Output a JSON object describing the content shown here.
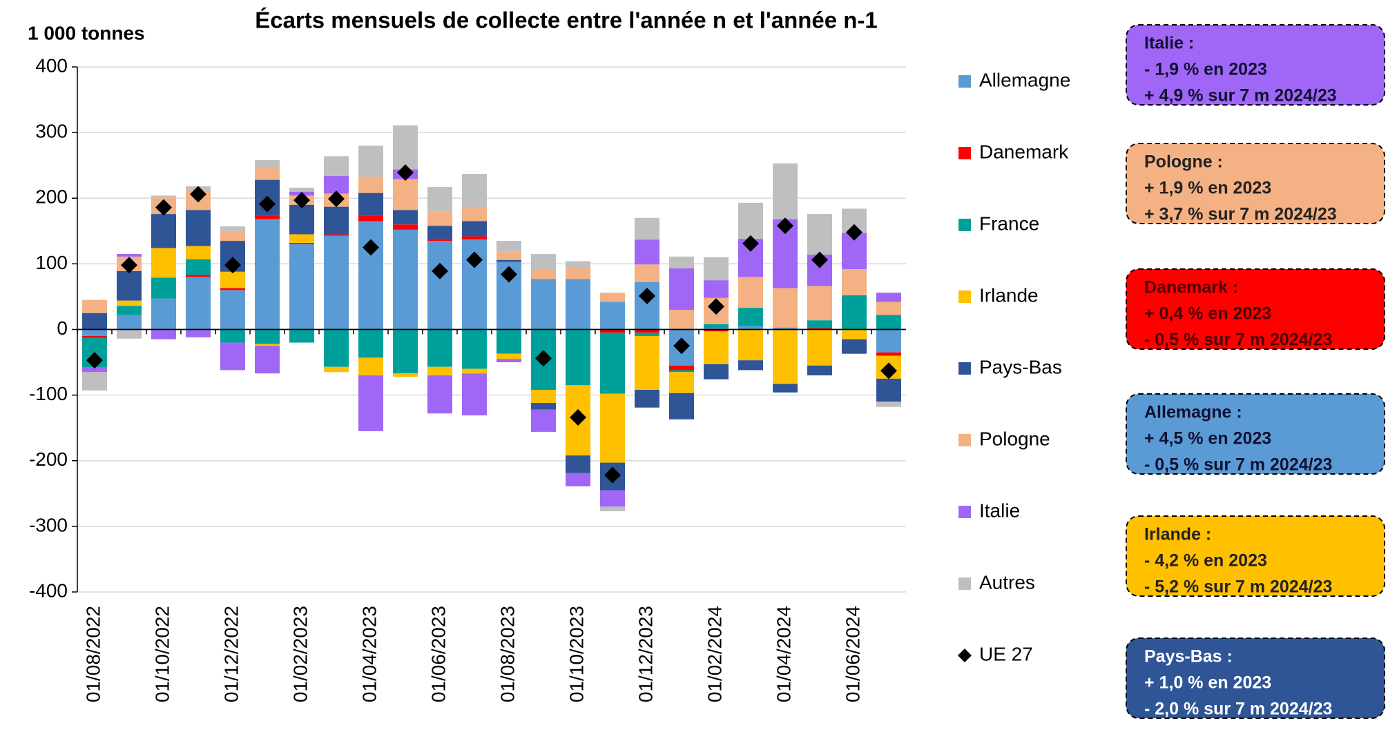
{
  "chart_data": {
    "type": "stacked_bar",
    "title": "Écarts mensuels de collecte entre l'année n et l'année n-1",
    "y_label": "1 000 tonnes",
    "categories": [
      "01/08/2022",
      null,
      "01/10/2022",
      null,
      "01/12/2022",
      null,
      "01/02/2023",
      null,
      "01/04/2023",
      null,
      "01/06/2023",
      null,
      "01/08/2023",
      null,
      "01/10/2023",
      null,
      "01/12/2023",
      null,
      "01/02/2024",
      null,
      "01/04/2024",
      null,
      "01/06/2024",
      null
    ],
    "ylim": [
      -400,
      400
    ],
    "yticks": [
      -400,
      -300,
      -200,
      -100,
      0,
      100,
      200,
      300,
      400
    ],
    "grid": true,
    "series": [
      {
        "name": "Allemagne",
        "color": "#5b9bd5",
        "values": [
          -10,
          22,
          47,
          80,
          60,
          168,
          130,
          143,
          165,
          152,
          135,
          137,
          103,
          77,
          77,
          42,
          72,
          -55,
          2,
          5,
          3,
          0,
          0,
          -35
        ]
      },
      {
        "name": "Danemark",
        "color": "#ff0000",
        "values": [
          -3,
          0,
          0,
          3,
          3,
          5,
          2,
          2,
          8,
          8,
          3,
          5,
          0,
          0,
          0,
          -5,
          -5,
          -7,
          -3,
          0,
          -1,
          2,
          0,
          -5
        ]
      },
      {
        "name": "France",
        "color": "#00a09a",
        "values": [
          -45,
          14,
          32,
          24,
          -20,
          -22,
          -20,
          -57,
          -43,
          -67,
          -57,
          -60,
          -37,
          -92,
          -85,
          -93,
          -5,
          -3,
          6,
          28,
          0,
          12,
          52,
          22
        ]
      },
      {
        "name": "Irlande",
        "color": "#ffc000",
        "values": [
          0,
          8,
          45,
          20,
          25,
          -3,
          13,
          -8,
          -27,
          -5,
          -13,
          -7,
          -8,
          -20,
          -107,
          -105,
          -82,
          -32,
          -50,
          -47,
          -82,
          -55,
          -15,
          -35
        ]
      },
      {
        "name": "Pays-Bas",
        "color": "#2f5597",
        "values": [
          25,
          45,
          52,
          55,
          47,
          55,
          45,
          42,
          35,
          22,
          20,
          23,
          3,
          -10,
          -27,
          -42,
          -27,
          -40,
          -23,
          -15,
          -13,
          -15,
          -22,
          -35
        ]
      },
      {
        "name": "Pologne",
        "color": "#f4b183",
        "values": [
          20,
          22,
          25,
          30,
          15,
          18,
          14,
          20,
          25,
          47,
          22,
          22,
          13,
          15,
          17,
          14,
          27,
          30,
          40,
          47,
          60,
          52,
          40,
          20
        ]
      },
      {
        "name": "Italie",
        "color": "#a066f5",
        "values": [
          -7,
          4,
          -15,
          -12,
          -42,
          -42,
          6,
          27,
          -85,
          15,
          -58,
          -64,
          -5,
          -34,
          -20,
          -25,
          38,
          63,
          27,
          58,
          105,
          48,
          55,
          14
        ]
      },
      {
        "name": "Autres",
        "color": "#bfbfbf",
        "values": [
          -28,
          -14,
          3,
          6,
          7,
          12,
          6,
          30,
          47,
          67,
          37,
          50,
          16,
          23,
          10,
          -7,
          33,
          18,
          35,
          55,
          85,
          62,
          37,
          -8
        ]
      }
    ],
    "markers": {
      "name": "UE 27",
      "color": "#000000",
      "values": [
        -47,
        98,
        186,
        206,
        98,
        191,
        197,
        199,
        125,
        239,
        89,
        106,
        84,
        -44,
        -134,
        -222,
        51,
        -25,
        35,
        131,
        158,
        106,
        148,
        -63
      ]
    },
    "boxes": [
      {
        "color": "#a066f5",
        "text_color": "#111133",
        "lines": [
          "Italie :",
          "- 1,9 % en 2023",
          "+ 4,9 % sur 7 m 2024/23"
        ]
      },
      {
        "color": "#f4b183",
        "text_color": "#222222",
        "lines": [
          "Pologne :",
          "+ 1,9 % en 2023",
          "+ 3,7 % sur 7 m 2024/23"
        ]
      },
      {
        "color": "#ff0000",
        "text_color": "#4a0000",
        "lines": [
          "Danemark :",
          "+ 0,4 % en 2023",
          "- 0,5 % sur 7 m 2024/23"
        ]
      },
      {
        "color": "#5b9bd5",
        "text_color": "#111133",
        "lines": [
          "Allemagne :",
          "+ 4,5 % en 2023",
          "- 0,5 % sur 7 m 2024/23"
        ]
      },
      {
        "color": "#ffc000",
        "text_color": "#222222",
        "lines": [
          "Irlande :",
          "- 4,2 % en 2023",
          "- 5,2 % sur 7 m 2024/23"
        ]
      },
      {
        "color": "#2f5597",
        "text_color": "#ffffff",
        "lines": [
          "Pays-Bas :",
          "+ 1,0 % en 2023",
          "- 2,0 % sur 7 m 2024/23"
        ]
      }
    ]
  }
}
